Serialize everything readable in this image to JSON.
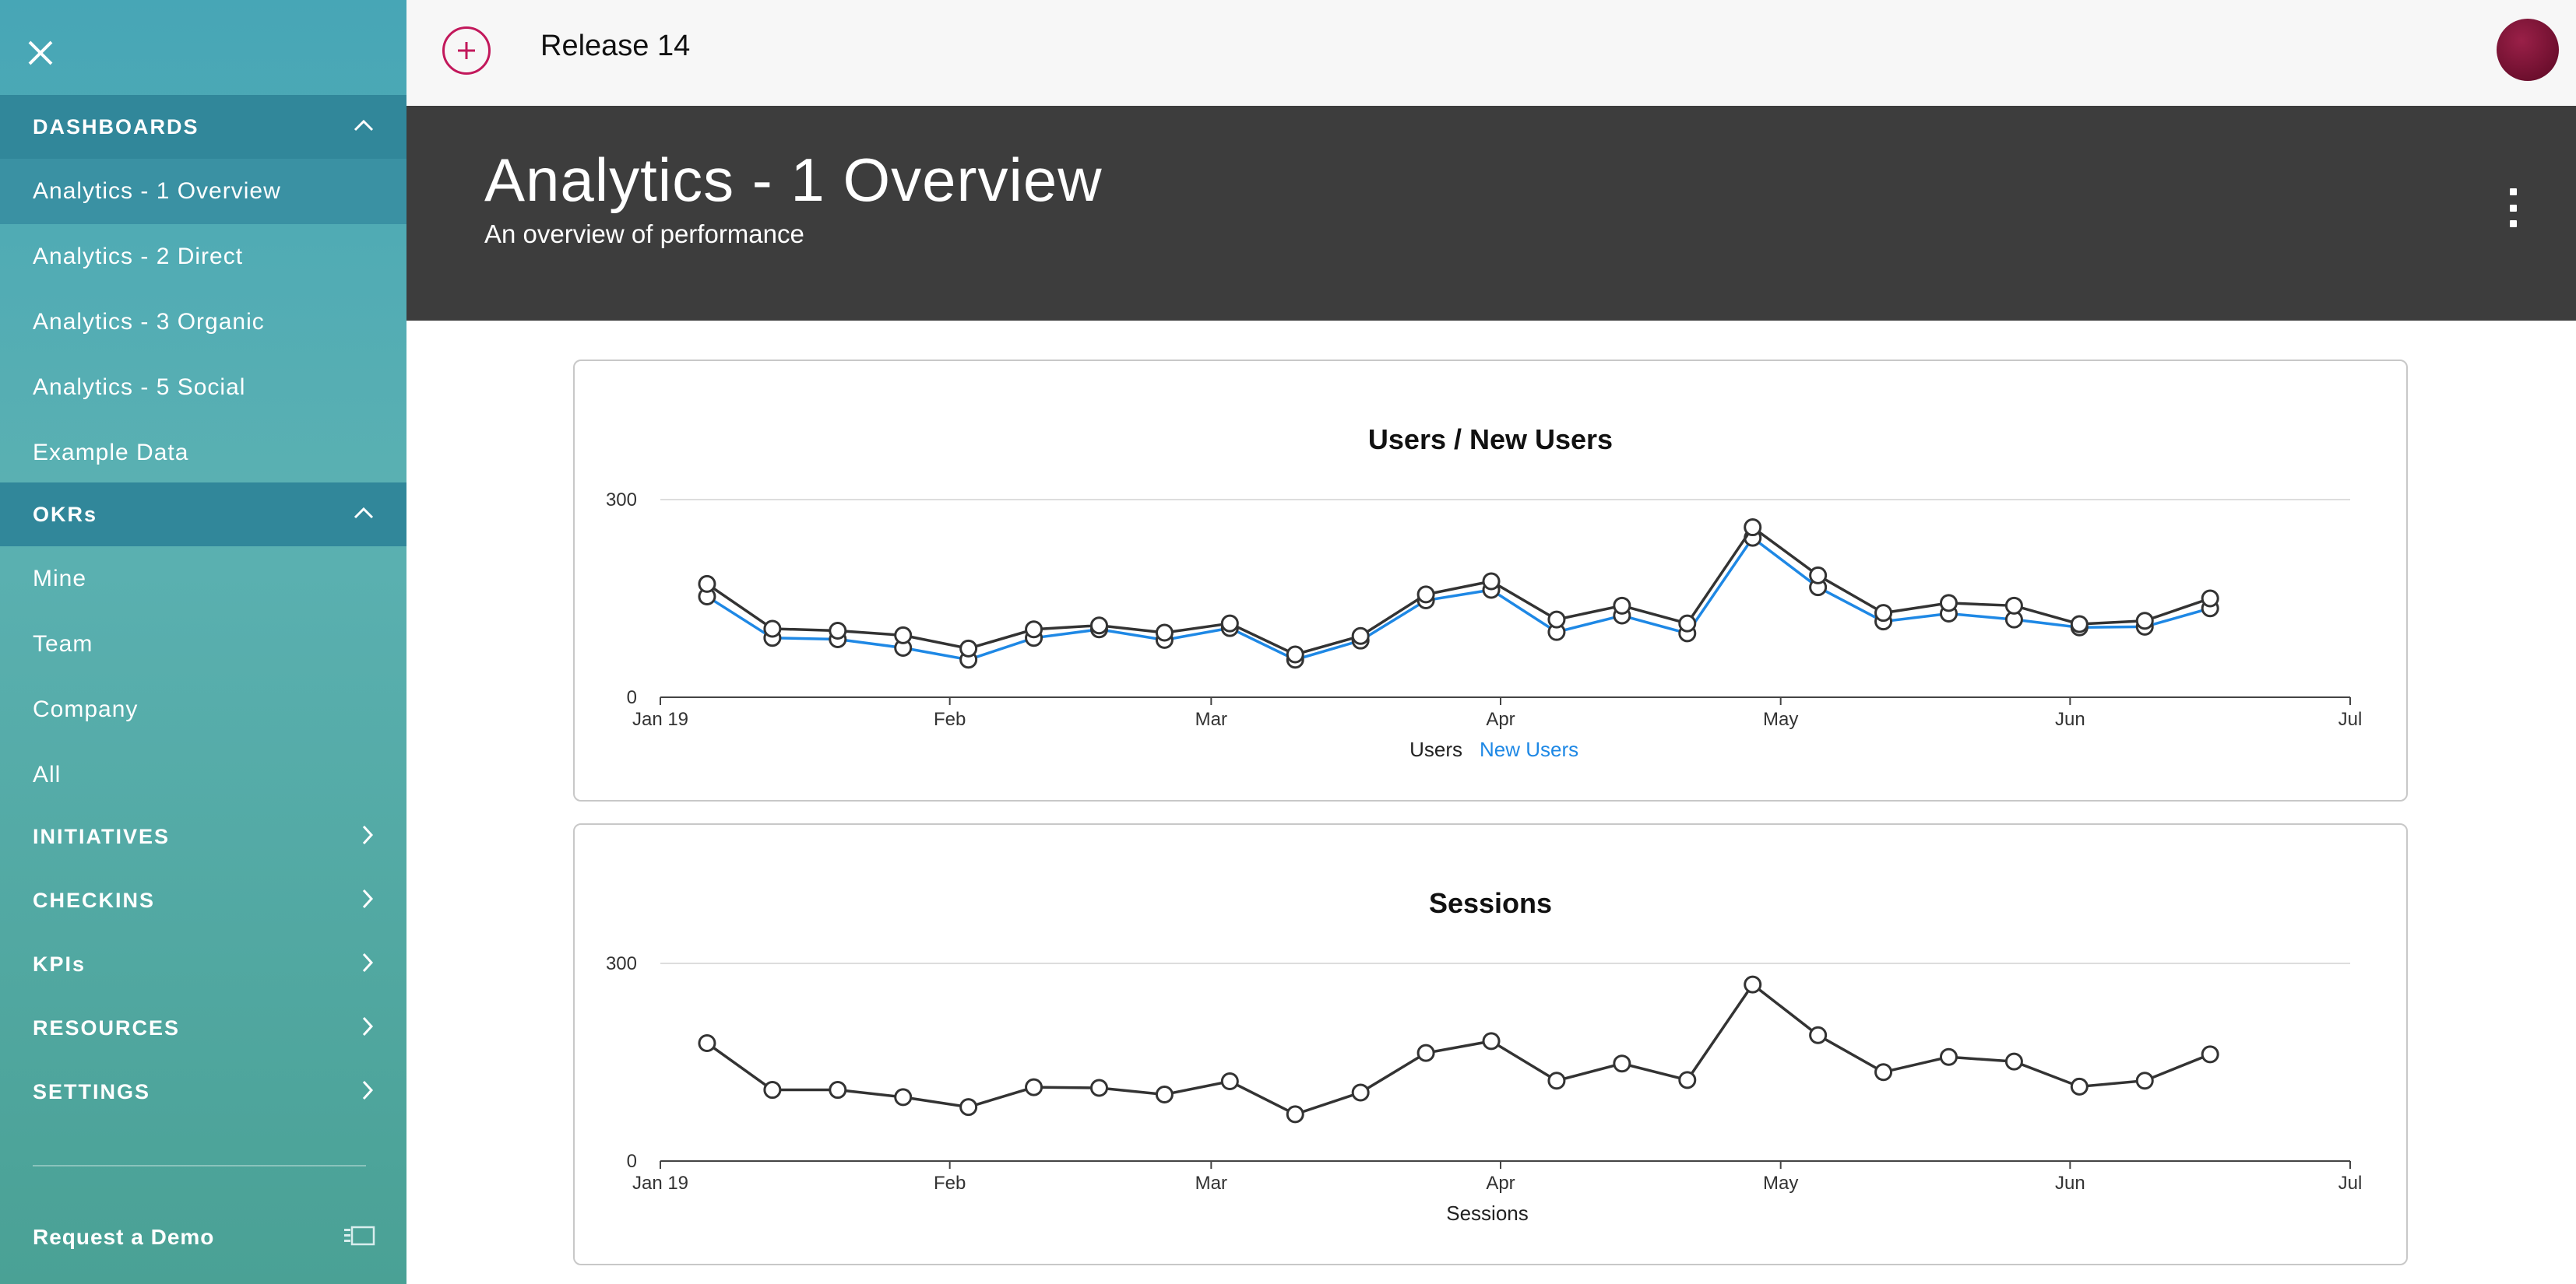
{
  "sidebar": {
    "close_icon": "close-icon",
    "dashboards": {
      "title": "DASHBOARDS",
      "items": [
        {
          "label": "Analytics - 1 Overview",
          "active": true
        },
        {
          "label": "Analytics - 2 Direct",
          "active": false
        },
        {
          "label": "Analytics - 3 Organic",
          "active": false
        },
        {
          "label": "Analytics - 5 Social",
          "active": false
        },
        {
          "label": "Example Data",
          "active": false
        }
      ]
    },
    "okrs": {
      "title": "OKRs",
      "items": [
        {
          "label": "Mine"
        },
        {
          "label": "Team"
        },
        {
          "label": "Company"
        },
        {
          "label": "All"
        }
      ]
    },
    "collapsed_sections": [
      {
        "label": "INITIATIVES"
      },
      {
        "label": "CHECKINS"
      },
      {
        "label": "KPIs"
      },
      {
        "label": "RESOURCES"
      },
      {
        "label": "SETTINGS"
      }
    ],
    "request_demo": "Request a Demo"
  },
  "topbar": {
    "release_title": "Release 14"
  },
  "header": {
    "title": "Analytics - 1 Overview",
    "subtitle": "An overview of performance"
  },
  "colors": {
    "users": "#333333",
    "new_users": "#1e88e5",
    "accent": "#c2185b"
  },
  "chart_data": [
    {
      "type": "line",
      "title": "Users / New Users",
      "x_ticks": [
        "Jan 19",
        "Feb",
        "Mar",
        "Apr",
        "May",
        "Jun",
        "Jul"
      ],
      "x": [
        "2019-01-06",
        "2019-01-13",
        "2019-01-20",
        "2019-01-27",
        "2019-02-03",
        "2019-02-10",
        "2019-02-17",
        "2019-02-24",
        "2019-03-03",
        "2019-03-10",
        "2019-03-17",
        "2019-03-24",
        "2019-03-31",
        "2019-04-07",
        "2019-04-14",
        "2019-04-21",
        "2019-04-28",
        "2019-05-05",
        "2019-05-12",
        "2019-05-19",
        "2019-05-26",
        "2019-06-02",
        "2019-06-09",
        "2019-06-16"
      ],
      "ylim": [
        0,
        300
      ],
      "y_ticks": [
        "0",
        "300"
      ],
      "series": [
        {
          "name": "Users",
          "values": [
            172,
            104,
            101,
            94,
            74,
            103,
            109,
            98,
            112,
            65,
            93,
            156,
            176,
            118,
            139,
            112,
            258,
            185,
            128,
            143,
            139,
            111,
            116,
            150
          ]
        },
        {
          "name": "New Users",
          "values": [
            153,
            90,
            88,
            75,
            57,
            90,
            103,
            87,
            105,
            57,
            86,
            147,
            163,
            99,
            124,
            97,
            242,
            167,
            115,
            127,
            118,
            106,
            107,
            135
          ]
        }
      ],
      "legend": [
        "Users",
        "New Users"
      ],
      "legend_position": "bottom",
      "grid": true
    },
    {
      "type": "line",
      "title": "Sessions",
      "x_ticks": [
        "Jan 19",
        "Feb",
        "Mar",
        "Apr",
        "May",
        "Jun",
        "Jul"
      ],
      "x": [
        "2019-01-06",
        "2019-01-13",
        "2019-01-20",
        "2019-01-27",
        "2019-02-03",
        "2019-02-10",
        "2019-02-17",
        "2019-02-24",
        "2019-03-03",
        "2019-03-10",
        "2019-03-17",
        "2019-03-24",
        "2019-03-31",
        "2019-04-07",
        "2019-04-14",
        "2019-04-21",
        "2019-04-28",
        "2019-05-05",
        "2019-05-12",
        "2019-05-19",
        "2019-05-26",
        "2019-06-02",
        "2019-06-09",
        "2019-06-16"
      ],
      "ylim": [
        0,
        300
      ],
      "y_ticks": [
        "0",
        "300"
      ],
      "series": [
        {
          "name": "Sessions",
          "values": [
            179,
            108,
            108,
            97,
            82,
            112,
            111,
            101,
            121,
            71,
            104,
            164,
            182,
            122,
            148,
            123,
            268,
            191,
            135,
            158,
            151,
            113,
            122,
            162
          ]
        }
      ],
      "legend": [
        "Sessions"
      ],
      "legend_position": "bottom",
      "grid": true
    }
  ]
}
